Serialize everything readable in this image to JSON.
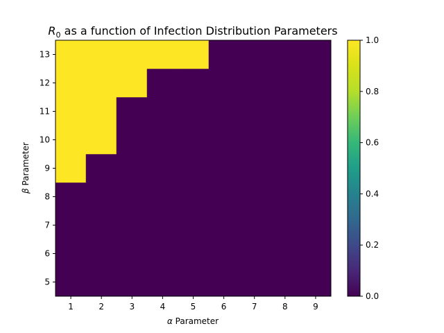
{
  "chart_data": {
    "type": "heatmap",
    "title": {
      "prefix": "R",
      "subscript": "0",
      "text": " as a function of Infection Distribution Parameters"
    },
    "xlabel": {
      "symbol": "α",
      "text": " Parameter"
    },
    "ylabel": {
      "symbol": "β",
      "text": " Parameter"
    },
    "x": [
      1,
      2,
      3,
      4,
      5,
      6,
      7,
      8,
      9
    ],
    "y": [
      5,
      6,
      7,
      8,
      9,
      10,
      11,
      12,
      13
    ],
    "values": [
      [
        0,
        0,
        0,
        0,
        0,
        0,
        0,
        0,
        0
      ],
      [
        0,
        0,
        0,
        0,
        0,
        0,
        0,
        0,
        0
      ],
      [
        0,
        0,
        0,
        0,
        0,
        0,
        0,
        0,
        0
      ],
      [
        0,
        0,
        0,
        0,
        0,
        0,
        0,
        0,
        0
      ],
      [
        1,
        0,
        0,
        0,
        0,
        0,
        0,
        0,
        0
      ],
      [
        1,
        1,
        0,
        0,
        0,
        0,
        0,
        0,
        0
      ],
      [
        1,
        1,
        0,
        0,
        0,
        0,
        0,
        0,
        0
      ],
      [
        1,
        1,
        1,
        0,
        0,
        0,
        0,
        0,
        0
      ],
      [
        1,
        1,
        1,
        1,
        1,
        0,
        0,
        0,
        0
      ]
    ],
    "colormap": "viridis",
    "colors": {
      "low": "#440154",
      "high": "#fde725"
    },
    "colorbar": {
      "range": [
        0.0,
        1.0
      ],
      "ticks": [
        "0.0",
        "0.2",
        "0.4",
        "0.6",
        "0.8",
        "1.0"
      ]
    },
    "grid": false
  }
}
